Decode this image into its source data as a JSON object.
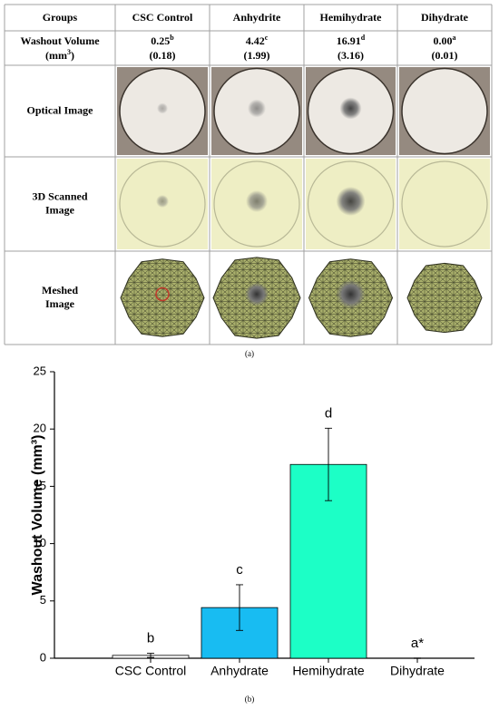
{
  "table": {
    "header": [
      "Groups",
      "CSC Control",
      "Anhydrite",
      "Hemihydrate",
      "Dihydrate"
    ],
    "washout": {
      "label": "Washout Volume",
      "unit_open": "(mm",
      "unit_sup": "3",
      "unit_close": ")",
      "cells": [
        {
          "mean": "0.25",
          "letter": "b",
          "sd": "(0.18)"
        },
        {
          "mean": "4.42",
          "letter": "c",
          "sd": "(1.99)"
        },
        {
          "mean": "16.91",
          "letter": "d",
          "sd": "(3.16)"
        },
        {
          "mean": "0.00",
          "letter": "a",
          "sd": "(0.01)"
        }
      ]
    },
    "row_labels": [
      [
        "Optical Image"
      ],
      [
        "3D Scanned",
        "Image"
      ],
      [
        "Meshed",
        "Image"
      ]
    ],
    "caption": "(a)"
  },
  "chart_data": {
    "type": "bar",
    "y_label": "Washout Volume (mm³)",
    "categories": [
      "CSC Control",
      "Anhydrate",
      "Hemihydrate",
      "Dihydrate"
    ],
    "values": [
      0.25,
      4.42,
      16.91,
      0.0
    ],
    "errors": [
      0.18,
      1.99,
      3.16,
      0.01
    ],
    "annotations": [
      "b",
      "c",
      "d",
      "a*"
    ],
    "colors": [
      "#ffffff",
      "#18bcf2",
      "#1cffc6",
      "#ffffff"
    ],
    "ylim": [
      0,
      25
    ],
    "yticks": [
      0,
      5,
      10,
      15,
      20,
      25
    ],
    "caption": "(b)"
  }
}
